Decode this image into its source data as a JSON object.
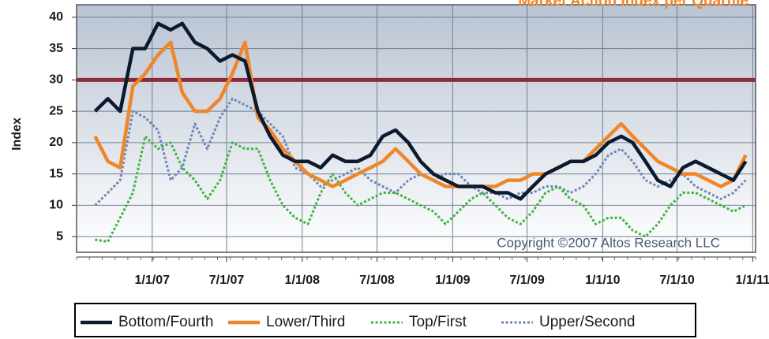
{
  "chart_data": {
    "type": "line",
    "title": "Market Action Index per Quartile",
    "ylabel": "Index",
    "annotation": "Copyright ©2007 Altos Research LLC",
    "reference_line": {
      "value": 30,
      "color": "#8b2c3a"
    },
    "x": [
      "2006-08-15",
      "2006-09-15",
      "2006-10-15",
      "2006-11-15",
      "2006-12-15",
      "2007-01-15",
      "2007-02-15",
      "2007-03-15",
      "2007-04-15",
      "2007-05-15",
      "2007-06-15",
      "2007-07-15",
      "2007-08-15",
      "2007-09-15",
      "2007-10-15",
      "2007-11-15",
      "2007-12-15",
      "2008-01-15",
      "2008-02-15",
      "2008-03-15",
      "2008-04-15",
      "2008-05-15",
      "2008-06-15",
      "2008-07-15",
      "2008-08-15",
      "2008-09-15",
      "2008-10-15",
      "2008-11-15",
      "2008-12-15",
      "2009-01-15",
      "2009-02-15",
      "2009-03-15",
      "2009-04-15",
      "2009-05-15",
      "2009-06-15",
      "2009-07-15",
      "2009-08-15",
      "2009-09-15",
      "2009-10-15",
      "2009-11-15",
      "2009-12-15",
      "2010-01-15",
      "2010-02-15",
      "2010-03-15",
      "2010-04-15",
      "2010-05-15",
      "2010-06-15",
      "2010-07-15",
      "2010-08-15",
      "2010-09-15",
      "2010-10-15",
      "2010-11-15",
      "2010-12-15"
    ],
    "series": [
      {
        "name": "Bottom/Fourth",
        "color": "#0b1a2e",
        "dash": "solid",
        "values": [
          25,
          27,
          25,
          35,
          35,
          39,
          38,
          39,
          36,
          35,
          33,
          34,
          33,
          25,
          21,
          18,
          17,
          17,
          16,
          18,
          17,
          17,
          18,
          21,
          22,
          20,
          17,
          15,
          14,
          13,
          13,
          13,
          12,
          12,
          11,
          13,
          15,
          16,
          17,
          17,
          18,
          20,
          21,
          20,
          17,
          14,
          13,
          16,
          17,
          16,
          15,
          14,
          17
        ]
      },
      {
        "name": "Lower/Third",
        "color": "#f0862a",
        "dash": "solid",
        "values": [
          21,
          17,
          16,
          29,
          31,
          34,
          36,
          28,
          25,
          25,
          27,
          31,
          36,
          24,
          22,
          19,
          17,
          15,
          14,
          13,
          14,
          15,
          16,
          17,
          19,
          17,
          15,
          14,
          13,
          13,
          13,
          13,
          13,
          14,
          14,
          15,
          15,
          16,
          17,
          17,
          19,
          21,
          23,
          21,
          19,
          17,
          16,
          15,
          15,
          14,
          13,
          14,
          18
        ]
      },
      {
        "name": "Top/First",
        "color": "#3fb43f",
        "dash": "dotted",
        "values": [
          4.5,
          4.2,
          8,
          12,
          21,
          19,
          20,
          16,
          14,
          11,
          14,
          20,
          19,
          19,
          14,
          10,
          8,
          7,
          12,
          15,
          12,
          10,
          11,
          12,
          12,
          11,
          10,
          9,
          7,
          9,
          11,
          12,
          10,
          8,
          7,
          9,
          12,
          13,
          11,
          10,
          7,
          8,
          8,
          6,
          5,
          7,
          10,
          12,
          12,
          11,
          10,
          9,
          10
        ]
      },
      {
        "name": "Upper/Second",
        "color": "#6d86b8",
        "dash": "dotted",
        "values": [
          10,
          12,
          14,
          25,
          24,
          22,
          14,
          16,
          23,
          19,
          24,
          27,
          26,
          25,
          23,
          21,
          16,
          15,
          13,
          14,
          15,
          16,
          14,
          13,
          12,
          14,
          15,
          14,
          15,
          15,
          13,
          12,
          12,
          11,
          12,
          12,
          13,
          13,
          12,
          13,
          15,
          18,
          19,
          17,
          14,
          13,
          14,
          15,
          13,
          12,
          11,
          12,
          14
        ]
      }
    ],
    "xlim": [
      "2006-07-01",
      "2011-01-08"
    ],
    "xticks": [
      {
        "value": "2007-01-01",
        "label": "1/1/07"
      },
      {
        "value": "2007-07-01",
        "label": "7/1/07"
      },
      {
        "value": "2008-01-01",
        "label": "1/1/08"
      },
      {
        "value": "2008-07-01",
        "label": "7/1/08"
      },
      {
        "value": "2009-01-01",
        "label": "1/1/09"
      },
      {
        "value": "2009-07-01",
        "label": "7/1/09"
      },
      {
        "value": "2010-01-01",
        "label": "1/1/10"
      },
      {
        "value": "2010-07-01",
        "label": "7/1/10"
      },
      {
        "value": "2011-01-01",
        "label": "1/1/11"
      }
    ],
    "ylim": [
      2.5,
      42
    ],
    "yticks": [
      5,
      10,
      15,
      20,
      25,
      30,
      35,
      40
    ],
    "grid": true,
    "legend": "bottom"
  }
}
